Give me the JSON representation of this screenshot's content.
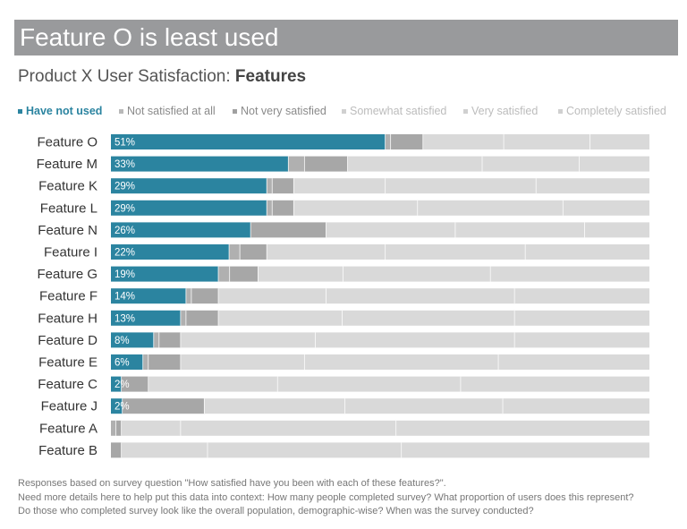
{
  "header": {
    "title": "Feature O is least used",
    "subtitle_prefix": "Product X User Satisfaction: ",
    "subtitle_bold": "Features"
  },
  "colors": {
    "banner": "#999a9c",
    "have_not_used": "#2b84a0",
    "not_satisfied_at_all": "#b0b0b0",
    "not_very_satisfied": "#a7a7a7",
    "somewhat_satisfied": "#d9d9d9",
    "very_satisfied": "#d9d9d9",
    "completely_satisfied": "#d9d9d9",
    "separator": "#ffffff"
  },
  "legend": [
    {
      "label": "Have not used",
      "color": "#2b84a0",
      "text_color": "#2b84a0",
      "bold": true
    },
    {
      "label": "Not satisfied at all",
      "color": "#b9b9b9",
      "text_color": "#8a8a8a",
      "bold": false
    },
    {
      "label": "Not very satisfied",
      "color": "#a0a0a0",
      "text_color": "#8a8a8a",
      "bold": false
    },
    {
      "label": "Somewhat satisfied",
      "color": "#d0d0d0",
      "text_color": "#bcbcbc",
      "bold": false
    },
    {
      "label": "Very satisfied",
      "color": "#d0d0d0",
      "text_color": "#bcbcbc",
      "bold": false
    },
    {
      "label": "Completely satisfied",
      "color": "#d0d0d0",
      "text_color": "#bcbcbc",
      "bold": false
    }
  ],
  "chart_data": {
    "type": "bar",
    "orientation": "horizontal",
    "stacked": true,
    "percent_stacked": true,
    "categories": [
      "Feature O",
      "Feature M",
      "Feature K",
      "Feature L",
      "Feature N",
      "Feature I",
      "Feature G",
      "Feature F",
      "Feature H",
      "Feature D",
      "Feature E",
      "Feature C",
      "Feature J",
      "Feature A",
      "Feature B"
    ],
    "series": [
      {
        "name": "Have not used",
        "values": [
          51,
          33,
          29,
          29,
          26,
          22,
          19,
          14,
          13,
          8,
          6,
          2,
          2,
          0,
          0
        ]
      },
      {
        "name": "Not satisfied at all",
        "values": [
          1,
          3,
          1,
          1,
          0,
          2,
          2,
          1,
          1,
          1,
          1,
          0,
          0,
          1,
          0
        ]
      },
      {
        "name": "Not very satisfied",
        "values": [
          6,
          8,
          4,
          4,
          14,
          5,
          5,
          5,
          6,
          4,
          6,
          5,
          14,
          1,
          2
        ]
      },
      {
        "name": "Somewhat satisfied",
        "values": [
          15,
          25,
          17,
          23,
          24,
          22,
          15,
          20,
          23,
          25,
          23,
          24,
          24,
          11,
          16
        ]
      },
      {
        "name": "Very satisfied",
        "values": [
          16,
          18,
          28,
          27,
          24,
          26,
          26,
          35,
          32,
          37,
          36,
          34,
          27,
          40,
          36
        ]
      },
      {
        "name": "Completely satisfied",
        "values": [
          11,
          13,
          21,
          16,
          12,
          23,
          28,
          25,
          25,
          25,
          28,
          35,
          25,
          47,
          46
        ]
      }
    ],
    "data_labels": [
      "51%",
      "33%",
      "29%",
      "29%",
      "26%",
      "22%",
      "19%",
      "14%",
      "13%",
      "8%",
      "6%",
      "2%",
      "2%",
      "",
      ""
    ],
    "xlim": [
      0,
      100
    ],
    "grid": false,
    "legend_position": "top"
  },
  "footnote": {
    "line1": "Responses based on survey question \"How satisfied have you been with each of these features?\".",
    "line2": "Need more details here to help put this data into context: How many people completed survey? What proportion of users does this represent?",
    "line3": "Do those who completed survey look like the overall population, demographic-wise? When was the survey conducted?"
  }
}
